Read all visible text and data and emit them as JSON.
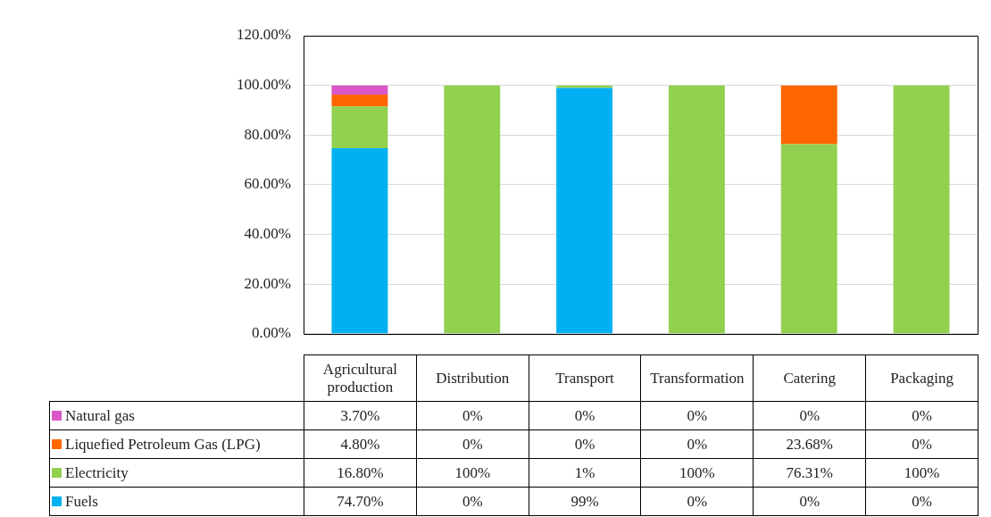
{
  "chart_data": {
    "type": "bar",
    "stacked": true,
    "categories": [
      "Agricultural production",
      "Distribution",
      "Transport",
      "Transformation",
      "Catering",
      "Packaging"
    ],
    "series": [
      {
        "name": "Fuels",
        "color": "#00b0f0",
        "values": [
          74.7,
          0,
          99,
          0,
          0,
          0
        ],
        "value_labels": [
          "74.70%",
          "0%",
          "99%",
          "0%",
          "0%",
          "0%"
        ]
      },
      {
        "name": "Electricity",
        "color": "#92d050",
        "values": [
          16.8,
          100,
          1,
          100,
          76.31,
          100
        ],
        "value_labels": [
          "16.80%",
          "100%",
          "1%",
          "100%",
          "76.31%",
          "100%"
        ]
      },
      {
        "name": "Liquefied Petroleum Gas (LPG)",
        "color": "#ff6600",
        "values": [
          4.8,
          0,
          0,
          0,
          23.68,
          0
        ],
        "value_labels": [
          "4.80%",
          "0%",
          "0%",
          "0%",
          "23.68%",
          "0%"
        ]
      },
      {
        "name": "Natural gas",
        "color": "#d957c6",
        "values": [
          3.7,
          0,
          0,
          0,
          0,
          0
        ],
        "value_labels": [
          "3.70%",
          "0%",
          "0%",
          "0%",
          "0%",
          "0%"
        ]
      }
    ],
    "ylim": [
      0,
      120
    ],
    "yticks": [
      {
        "value": 0,
        "label": "0.00%"
      },
      {
        "value": 20,
        "label": "20.00%"
      },
      {
        "value": 40,
        "label": "40.00%"
      },
      {
        "value": 60,
        "label": "60.00%"
      },
      {
        "value": 80,
        "label": "80.00%"
      },
      {
        "value": 100,
        "label": "100.00%"
      },
      {
        "value": 120,
        "label": "120.00%"
      }
    ],
    "grid": "y",
    "legend": "bottom"
  }
}
